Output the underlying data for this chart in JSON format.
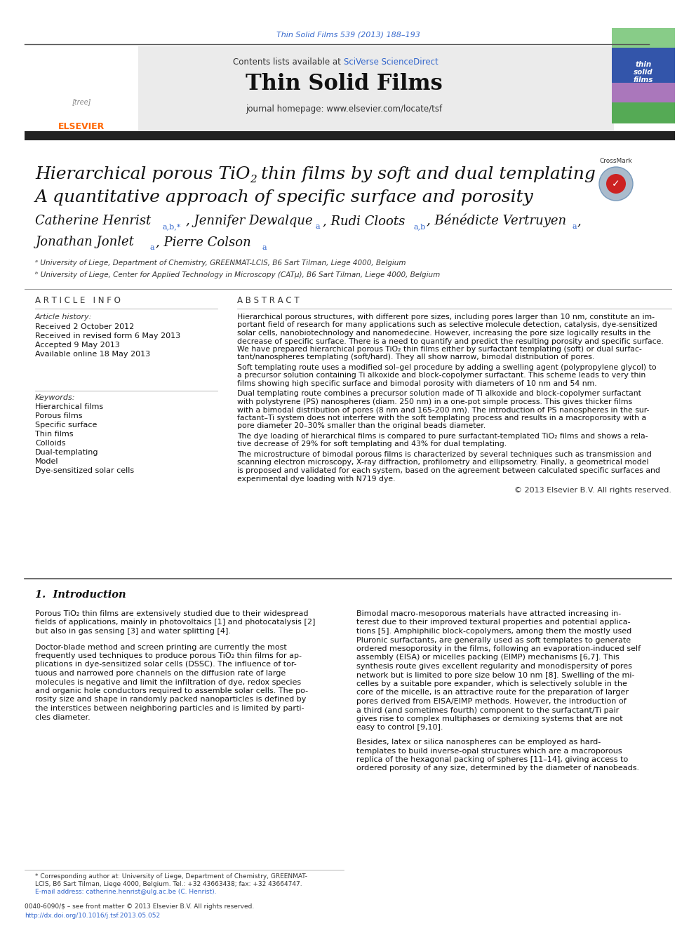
{
  "page_bg": "#ffffff",
  "top_journal_ref": "Thin Solid Films 539 (2013) 188–193",
  "top_journal_ref_color": "#3366cc",
  "header_bg": "#e8e8e8",
  "header_contents_text": "Contents lists available at ",
  "header_sciverse": "SciVerse ScienceDirect",
  "header_sciverse_color": "#3366cc",
  "header_journal_name": "Thin Solid Films",
  "header_journal_url": "journal homepage: www.elsevier.com/locate/tsf",
  "thick_bar_color": "#222222",
  "paper_title_line1": "Hierarchical porous TiO",
  "paper_title_line1_sub": "2",
  "paper_title_line1_end": " thin films by soft and dual templating",
  "paper_title_line2": "A quantitative approach of specific surface and porosity",
  "paper_title_fontsize": 18,
  "authors": "Catherine Henrist",
  "authors_super1": "a,b,*",
  "author2": ", Jennifer Dewalque",
  "author2_super": "a",
  "author3": ", Rudi Cloots",
  "author3_super": "a,b",
  "author4": ", Bénédicte Vertruyen",
  "author4_super": "a",
  "authors_line2": "Jonathan Jonlet",
  "authors_line2_super": "a",
  "author6": ", Pierre Colson",
  "author6_super": "a",
  "affil_a": "ᵃ University of Liege, Department of Chemistry, GREENMAT-LCIS, B6 Sart Tilman, Liege 4000, Belgium",
  "affil_b": "ᵇ University of Liege, Center for Applied Technology in Microscopy (CATμ), B6 Sart Tilman, Liege 4000, Belgium",
  "section_article_info": "A R T I C L E   I N F O",
  "section_abstract": "A B S T R A C T",
  "article_history_label": "Article history:",
  "received1": "Received 2 October 2012",
  "received2": "Received in revised form 6 May 2013",
  "accepted": "Accepted 9 May 2013",
  "available": "Available online 18 May 2013",
  "keywords_label": "Keywords:",
  "keywords": [
    "Hierarchical films",
    "Porous films",
    "Specific surface",
    "Thin films",
    "Colloids",
    "Dual-templating",
    "Model",
    "Dye-sensitized solar cells"
  ],
  "abstract_paragraphs": [
    "Hierarchical porous structures, with different pore sizes, including pores larger than 10 nm, constitute an im-\nportant field of research for many applications such as selective molecule detection, catalysis, dye-sensitized\nsolar cells, nanobiotechnology and nanomedecine. However, increasing the pore size logically results in the\ndecrease of specific surface. There is a need to quantify and predict the resulting porosity and specific surface.\nWe have prepared hierarchical porous TiO₂ thin films either by surfactant templating (soft) or dual surfac-\ntant/nanospheres templating (soft/hard). They all show narrow, bimodal distribution of pores.",
    "Soft templating route uses a modified sol–gel procedure by adding a swelling agent (polypropylene glycol) to\na precursor solution containing Ti alkoxide and block-copolymer surfactant. This scheme leads to very thin\nfilms showing high specific surface and bimodal porosity with diameters of 10 nm and 54 nm.",
    "Dual templating route combines a precursor solution made of Ti alkoxide and block-copolymer surfactant\nwith polystyrene (PS) nanospheres (diam. 250 nm) in a one-pot simple process. This gives thicker films\nwith a bimodal distribution of pores (8 nm and 165-200 nm). The introduction of PS nanospheres in the sur-\nfactant–Ti system does not interfere with the soft templating process and results in a macroporosity with a\npore diameter 20–30% smaller than the original beads diameter.",
    "The dye loading of hierarchical films is compared to pure surfactant-templated TiO₂ films and shows a rela-\ntive decrease of 29% for soft templating and 43% for dual templating.",
    "The microstructure of bimodal porous films is characterized by several techniques such as transmission and\nscanning electron microscopy, X-ray diffraction, profilometry and ellipsometry. Finally, a geometrical model\nis proposed and validated for each system, based on the agreement between calculated specific surfaces and\nexperimental dye loading with N719 dye."
  ],
  "copyright": "© 2013 Elsevier B.V. All rights reserved.",
  "section_intro": "1.  Introduction",
  "intro_col1_p1": "Porous TiO₂ thin films are extensively studied due to their widespread\nfields of applications, mainly in photovoltaics [1] and photocatalysis [2]\nbut also in gas sensing [3] and water splitting [4].",
  "intro_col1_p2": "Doctor-blade method and screen printing are currently the most\nfrequently used techniques to produce porous TiO₂ thin films for ap-\nplications in dye-sensitized solar cells (DSSC). The influence of tor-\ntuous and narrowed pore channels on the diffusion rate of large\nmolecules is negative and limit the infiltration of dye, redox species\nand organic hole conductors required to assemble solar cells. The po-\nrosity size and shape in randomly packed nanoparticles is defined by\nthe interstices between neighboring particles and is limited by parti-\ncles diameter.",
  "intro_col2_p1": "Bimodal macro-mesoporous materials have attracted increasing in-\nterest due to their improved textural properties and potential applica-\ntions [5]. Amphiphilic block-copolymers, among them the mostly used\nPluronic surfactants, are generally used as soft templates to generate\nordered mesoporosity in the films, following an evaporation-induced self\nassembly (EISA) or micelles packing (EIMP) mechanisms [6,7]. This\nsynthesis route gives excellent regularity and monodispersity of pores\nnetwork but is limited to pore size below 10 nm [8]. Swelling of the mi-\ncelles by a suitable pore expander, which is selectively soluble in the\ncore of the micelle, is an attractive route for the preparation of larger\npores derived from EISA/EIMP methods. However, the introduction of\na third (and sometimes fourth) component to the surfactant/Ti pair\ngives rise to complex multiphases or demixing systems that are not\neasy to control [9,10].",
  "intro_col2_p2": "Besides, latex or silica nanospheres can be employed as hard-\ntemplates to build inverse-opal structures which are a macroporous\nreplica of the hexagonal packing of spheres [11–14], giving access to\nordered porosity of any size, determined by the diameter of nanobeads.",
  "footnote_corr": "* Corresponding author at: University of Liege, Department of Chemistry, GREENMAT-\nLCIS, B6 Sart Tilman, Liege 4000, Belgium. Tel.: +32 43663438; fax: +32 43664747.",
  "footnote_email": "E-mail address: catherine.henrist@ulg.ac.be (C. Henrist).",
  "footer_issn": "0040-6090/$ – see front matter © 2013 Elsevier B.V. All rights reserved.",
  "footer_doi": "http://dx.doi.org/10.1016/j.tsf.2013.05.052",
  "cover_colors": [
    "#66bb66",
    "#5577aa",
    "#aa77bb",
    "#66bb66"
  ],
  "elsevier_orange": "#FF6600",
  "blue_link": "#3366cc",
  "dark_text": "#111111",
  "mid_text": "#333333",
  "light_line": "#aaaaaa",
  "dark_line": "#555555"
}
